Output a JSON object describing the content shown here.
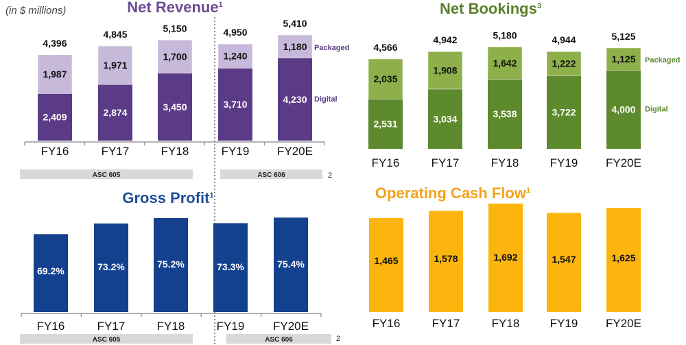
{
  "units_note": "(in $ millions)",
  "footnote_marker": "2",
  "colors": {
    "revenue_digital": "#5b3a86",
    "revenue_packaged": "#c7b9d9",
    "revenue_title": "#6b4c93",
    "bookings_digital": "#5e8a2e",
    "bookings_packaged": "#8db04a",
    "bookings_title": "#5a7f2a",
    "gross_profit": "#14418e",
    "gross_profit_title": "#1f4e9a",
    "cash_flow": "#fbb50e",
    "cash_flow_title": "#f5a21b",
    "asc_band": "#d9d9d9"
  },
  "chart_data": [
    {
      "type": "bar",
      "stacked": true,
      "title": "Net Revenue",
      "title_superscript": "1",
      "categories": [
        "FY16",
        "FY17",
        "FY18",
        "FY19",
        "FY20E"
      ],
      "series": [
        {
          "name": "Digital",
          "values": [
            2409,
            2874,
            3450,
            3710,
            4230
          ]
        },
        {
          "name": "Packaged",
          "values": [
            1987,
            1971,
            1700,
            1240,
            1180
          ]
        }
      ],
      "totals": [
        4396,
        4845,
        5150,
        4950,
        5410
      ],
      "ylim": [
        0,
        5500
      ],
      "grid": false,
      "legend": "right",
      "annotations": [
        {
          "label": "ASC 605",
          "categories": [
            "FY16",
            "FY17",
            "FY18"
          ]
        },
        {
          "label": "ASC 606",
          "categories": [
            "FY19",
            "FY20E"
          ]
        }
      ]
    },
    {
      "type": "bar",
      "stacked": true,
      "title": "Net Bookings",
      "title_superscript": "3",
      "categories": [
        "FY16",
        "FY17",
        "FY18",
        "FY19",
        "FY20E"
      ],
      "series": [
        {
          "name": "Digital",
          "values": [
            2531,
            3034,
            3538,
            3722,
            4000
          ]
        },
        {
          "name": "Packaged",
          "values": [
            2035,
            1908,
            1642,
            1222,
            1125
          ]
        }
      ],
      "totals": [
        4566,
        4942,
        5180,
        4944,
        5125
      ],
      "ylim": [
        0,
        5500
      ],
      "grid": false,
      "legend": "right"
    },
    {
      "type": "bar",
      "title": "Gross Profit",
      "title_superscript": "1",
      "categories": [
        "FY16",
        "FY17",
        "FY18",
        "FY19",
        "FY20E"
      ],
      "values": [
        69.2,
        73.2,
        75.2,
        73.3,
        75.4
      ],
      "labels": [
        "69.2%",
        "73.2%",
        "75.2%",
        "73.3%",
        "75.4%"
      ],
      "ylim": [
        40,
        80
      ],
      "grid": false,
      "annotations": [
        {
          "label": "ASC 605",
          "categories": [
            "FY16",
            "FY17",
            "FY18"
          ]
        },
        {
          "label": "ASC 606",
          "categories": [
            "FY19",
            "FY20E"
          ]
        }
      ]
    },
    {
      "type": "bar",
      "title": "Operating Cash Flow",
      "title_superscript": "1",
      "categories": [
        "FY16",
        "FY17",
        "FY18",
        "FY19",
        "FY20E"
      ],
      "values": [
        1465,
        1578,
        1692,
        1547,
        1625
      ],
      "labels": [
        "1,465",
        "1,578",
        "1,692",
        "1,547",
        "1,625"
      ],
      "ylim": [
        0,
        1800
      ],
      "grid": false
    }
  ]
}
